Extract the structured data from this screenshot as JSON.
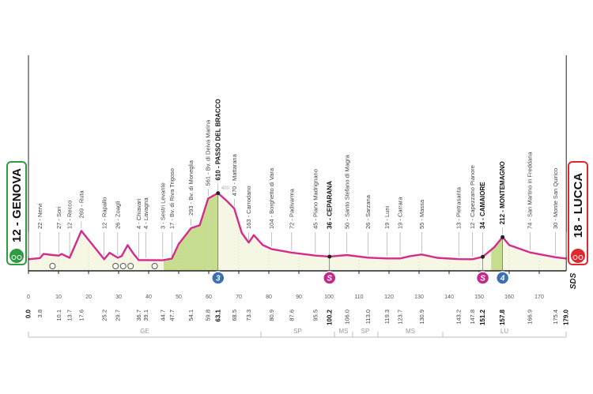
{
  "start": "12 - GENOVA",
  "finish": "18 - LUCCA",
  "logo": "SDS",
  "altitude_label": 400,
  "waypoints": [
    {
      "label": "22 - Nervi",
      "km": "3.8"
    },
    {
      "label": "27 - Sori",
      "km": "10.1"
    },
    {
      "label": "12 - Recco",
      "km": "13.7"
    },
    {
      "label": "269 - Ruta",
      "km": "17.6"
    },
    {
      "label": "12 - Rapallo",
      "km": "25.2"
    },
    {
      "label": "26 - Zoagli",
      "km": "29.7"
    },
    {
      "label": "4 - Chiavari",
      "km": "36.7"
    },
    {
      "label": "4 - Lavagna",
      "km": "39.1"
    },
    {
      "label": "3 - Sestri Levante",
      "km": "44.7"
    },
    {
      "label": "17 - Bv. di Riva Trigoso",
      "km": "47.7"
    },
    {
      "label": "293 - Bv. di Moneglia",
      "km": "54.1"
    },
    {
      "label": "561 - Bv. di Deiva Marina",
      "km": "59.8"
    },
    {
      "label": "610 - PASSO DEL BRACCO",
      "km": "63.1",
      "bold": true
    },
    {
      "label": "470 - Mattarana",
      "km": "68.5"
    },
    {
      "label": "163 - Carrodano",
      "km": "73.3"
    },
    {
      "label": "104 - Borghetto di Vara",
      "km": "80.9"
    },
    {
      "label": "72 - Padivarma",
      "km": "87.6"
    },
    {
      "label": "45 - Piano Madrignano",
      "km": "95.5"
    },
    {
      "label": "36 - CEPARANA",
      "km": "100.2",
      "bold": true
    },
    {
      "label": "50 - Santo Stefano di Magra",
      "km": "106.0"
    },
    {
      "label": "26 - Sarzana",
      "km": "113.0"
    },
    {
      "label": "19 - Luni",
      "km": "119.3"
    },
    {
      "label": "19 - Carrara",
      "km": "123.7"
    },
    {
      "label": "55 - Massa",
      "km": "130.9"
    },
    {
      "label": "13 - Pietrasanta",
      "km": "143.2"
    },
    {
      "label": "12 - Capezzano Pianore",
      "km": "147.8"
    },
    {
      "label": "34 - CAMAIORE",
      "km": "151.2",
      "bold": true
    },
    {
      "label": "212 - MONTEMAGNO",
      "km": "157.8",
      "bold": true
    },
    {
      "label": "74 - San Martino in Freddana",
      "km": "166.9"
    },
    {
      "label": "30 - Monte San Quirico",
      "km": "175.4"
    }
  ],
  "start_km": "0.0",
  "finish_km": "179.0",
  "markers": [
    {
      "label": "3",
      "km": "63.1",
      "color": "#3a6fb5"
    },
    {
      "label": "S",
      "km": "100.2",
      "color": "#c2298a"
    },
    {
      "label": "S",
      "km": "151.2",
      "color": "#c2298a"
    },
    {
      "label": "4",
      "km": "157.8",
      "color": "#3a6fb5"
    }
  ],
  "xticks": [
    0,
    10,
    20,
    30,
    40,
    50,
    60,
    70,
    80,
    90,
    100,
    110,
    120,
    130,
    140,
    150,
    160,
    170
  ],
  "regions": [
    "GE",
    "SP",
    "MS",
    "SP",
    "MS",
    "LU"
  ],
  "profile": {
    "x": [
      0,
      3.8,
      5,
      8,
      10.1,
      11,
      13.7,
      17.6,
      22,
      25.2,
      27,
      29.7,
      31,
      33,
      35,
      36.7,
      39.1,
      44.7,
      47.7,
      50,
      54.1,
      57,
      59.8,
      63.1,
      66,
      68.5,
      71,
      73.3,
      75,
      78,
      80.9,
      87.6,
      95.5,
      100.2,
      106,
      113,
      119.3,
      123.7,
      127,
      130.9,
      136,
      143.2,
      147.8,
      151.2,
      155,
      157.8,
      160,
      166.9,
      175.4,
      179
    ],
    "altitude": [
      12,
      22,
      60,
      50,
      45,
      60,
      25,
      269,
      120,
      12,
      70,
      26,
      40,
      140,
      60,
      4,
      4,
      3,
      17,
      150,
      293,
      320,
      561,
      610,
      540,
      470,
      250,
      163,
      230,
      140,
      104,
      72,
      45,
      36,
      50,
      26,
      19,
      19,
      40,
      55,
      25,
      13,
      12,
      34,
      120,
      212,
      140,
      74,
      30,
      18
    ],
    "climbs": [
      [
        45,
        63.1
      ],
      [
        154,
        157.8
      ]
    ]
  }
}
